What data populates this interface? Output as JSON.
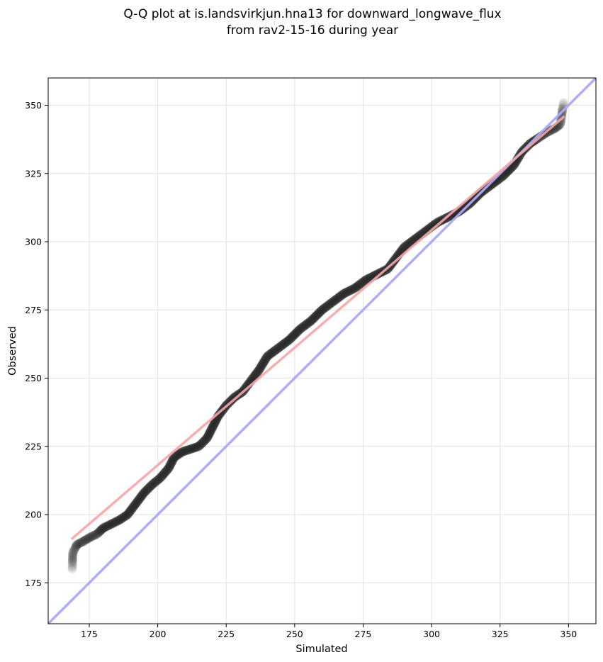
{
  "chart_data": {
    "type": "scatter",
    "title_lines": [
      "Q-Q plot at is.landsvirkjun.hna13 for downward_longwave_flux",
      "from rav2-15-16 during year"
    ],
    "xlabel": "Simulated",
    "ylabel": "Observed",
    "xlim": [
      160,
      360
    ],
    "ylim": [
      160,
      360
    ],
    "x_ticks": [
      175,
      200,
      225,
      250,
      275,
      300,
      325,
      350
    ],
    "y_ticks": [
      175,
      200,
      225,
      250,
      275,
      300,
      325,
      350
    ],
    "grid": true,
    "colors": {
      "points": "#222222",
      "fit_line": "#f4a6a8",
      "identity_line": "#a9aaf5",
      "grid": "#e6e6e6"
    },
    "fit_line": {
      "x": [
        168.5,
        348.5
      ],
      "y": [
        191,
        346
      ]
    },
    "identity_line": {
      "x": [
        160,
        360
      ],
      "y": [
        160,
        360
      ]
    },
    "quantile_curve": [
      [
        168.8,
        180
      ],
      [
        169.0,
        186
      ],
      [
        170.5,
        189
      ],
      [
        172.5,
        190
      ],
      [
        175,
        191.5
      ],
      [
        178,
        193
      ],
      [
        180,
        195
      ],
      [
        183,
        196.5
      ],
      [
        186,
        198
      ],
      [
        189,
        200
      ],
      [
        192,
        204
      ],
      [
        195,
        208
      ],
      [
        198,
        211
      ],
      [
        201,
        213.5
      ],
      [
        204,
        217
      ],
      [
        206,
        221
      ],
      [
        209,
        223
      ],
      [
        212,
        224
      ],
      [
        215,
        225
      ],
      [
        218,
        228
      ],
      [
        220,
        232
      ],
      [
        222,
        236
      ],
      [
        225,
        240
      ],
      [
        228,
        243
      ],
      [
        231,
        245
      ],
      [
        234,
        249
      ],
      [
        237,
        253
      ],
      [
        240,
        258
      ],
      [
        244,
        261
      ],
      [
        248,
        264
      ],
      [
        252,
        268
      ],
      [
        256,
        271
      ],
      [
        260,
        275
      ],
      [
        264,
        278
      ],
      [
        268,
        281
      ],
      [
        272,
        283
      ],
      [
        276,
        286
      ],
      [
        280,
        288
      ],
      [
        284,
        290
      ],
      [
        287,
        294
      ],
      [
        290,
        298
      ],
      [
        294,
        301
      ],
      [
        298,
        304
      ],
      [
        302,
        307
      ],
      [
        306,
        309
      ],
      [
        310,
        311
      ],
      [
        314,
        314
      ],
      [
        318,
        318
      ],
      [
        322,
        321
      ],
      [
        326,
        324
      ],
      [
        330,
        328
      ],
      [
        333,
        333
      ],
      [
        336,
        336
      ],
      [
        339,
        338
      ],
      [
        342,
        340
      ],
      [
        345,
        341.5
      ],
      [
        347,
        343
      ],
      [
        348.2,
        351
      ]
    ]
  }
}
